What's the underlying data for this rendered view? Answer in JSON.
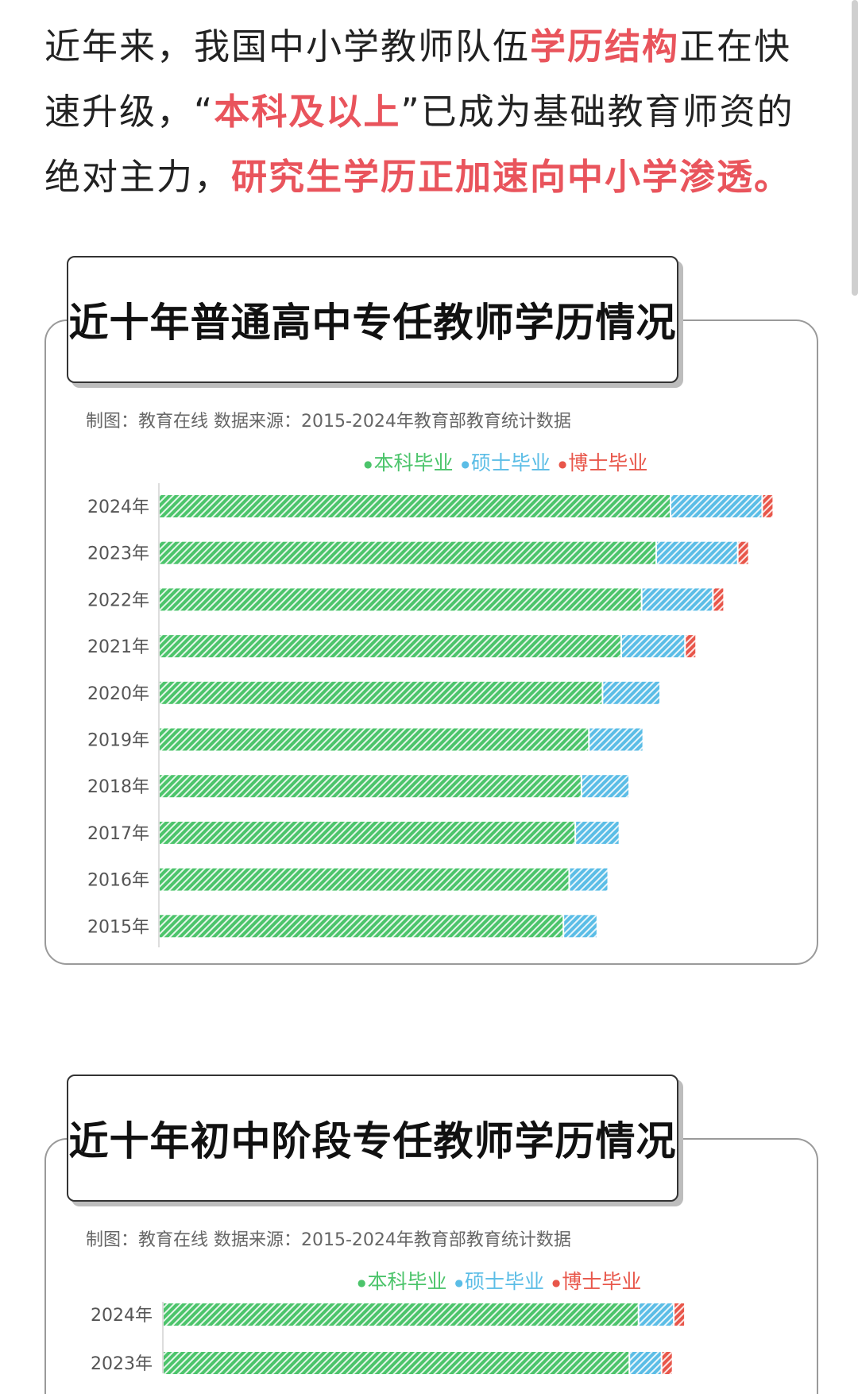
{
  "intro": {
    "part1": "近年来，我国中小学教师队伍",
    "hl1": "学历结构",
    "part2": "正在快速升级，“",
    "hl2": "本科及以上",
    "part3": "”已成为基础教育师资的绝对主力，",
    "hl3": "研究生学历正加速向中小学渗透。"
  },
  "colors": {
    "highlight": "#e9545c",
    "bachelor": "#4cc46b",
    "master": "#5bbde6",
    "phd": "#e8564a"
  },
  "legend": [
    {
      "label": "本科毕业",
      "color": "#4cc46b"
    },
    {
      "label": "硕士毕业",
      "color": "#5bbde6"
    },
    {
      "label": "博士毕业",
      "color": "#e8564a"
    }
  ],
  "chart_data": [
    {
      "type": "bar",
      "orientation": "horizontal",
      "stacked": true,
      "title": "近十年普通高中专任教师学历情况",
      "credit": "制图：教育在线    数据来源：2015-2024年教育部教育统计数据",
      "legend_position": "top-right",
      "grid": false,
      "categories": [
        "2024年",
        "2023年",
        "2022年",
        "2021年",
        "2020年",
        "2019年",
        "2018年",
        "2017年",
        "2016年",
        "2015年"
      ],
      "series": [
        {
          "name": "本科毕业",
          "values": [
            150.0,
            145.8,
            141.5,
            135.5,
            130.0,
            126.0,
            123.8,
            122.0,
            120.2,
            118.5
          ]
        },
        {
          "name": "硕士毕业",
          "values": [
            26.5,
            23.5,
            20.5,
            18.3,
            16.5,
            15.5,
            13.6,
            12.5,
            11.0,
            9.5
          ]
        },
        {
          "name": "博士毕业",
          "values": [
            2.8,
            2.4,
            2.2,
            1.8,
            0,
            0,
            0,
            0,
            0,
            0
          ]
        }
      ]
    },
    {
      "type": "bar",
      "orientation": "horizontal",
      "stacked": true,
      "title": "近十年初中阶段专任教师学历情况",
      "credit": "制图：教育在线    数据来源：2015-2024年教育部教育统计数据",
      "legend_position": "top-right",
      "grid": false,
      "categories": [
        "2024年",
        "2023年"
      ],
      "series": [
        {
          "name": "本科毕业",
          "values": [
            155.0,
            152.0
          ]
        },
        {
          "name": "硕士毕业",
          "values": [
            11.0,
            10.0
          ]
        },
        {
          "name": "博士毕业",
          "values": [
            1.5,
            1.2
          ]
        }
      ]
    }
  ]
}
